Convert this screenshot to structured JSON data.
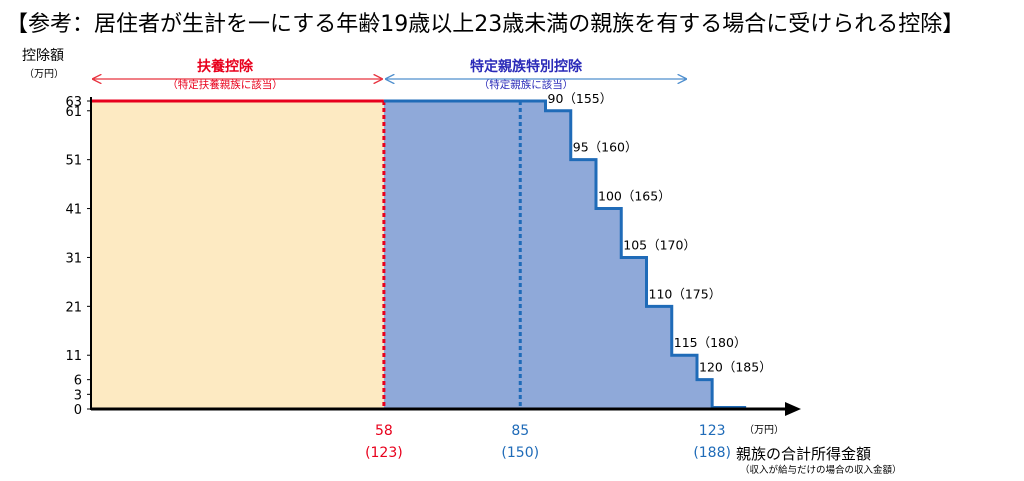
{
  "title": "【参考：居住者が生計を一にする年齢19歳以上23歳未満の親族を有する場合に受けられる控除】",
  "colors": {
    "fuyo_fill": "#fdeac2",
    "tokutei_fill": "#8fa9d9",
    "red": "#e8001c",
    "blue": "#1f6bb8",
    "label_blue": "#2a2ab8",
    "arrow_red": "#e8333f",
    "arrow_blue": "#4f8fce"
  },
  "chart_data": {
    "type": "area",
    "ylabel": "控除額",
    "yunit": "（万円）",
    "xlabel": "親族の合計所得金額",
    "xlabel_note": "（収入が給与だけの場合の収入金額）",
    "xunit": "（万円）",
    "yticks": [
      "0",
      "3",
      "6",
      "11",
      "21",
      "31",
      "41",
      "51",
      "61",
      "63"
    ],
    "xticks": [
      {
        "value": "58",
        "sub": "(123)",
        "color": "red"
      },
      {
        "value": "85",
        "sub": "(150)",
        "color": "blue"
      },
      {
        "value": "123",
        "sub": "(188)",
        "color": "blue"
      }
    ],
    "regions": [
      {
        "name": "扶養控除",
        "note": "（特定扶養親族に該当）",
        "from": 0,
        "to": 58,
        "value": 63
      },
      {
        "name": "特定親族特別控除",
        "note": "（特定親族に該当）",
        "from": 58,
        "to": 123
      }
    ],
    "steps": [
      {
        "x": 58,
        "y": 63
      },
      {
        "x": 85,
        "y": 63
      },
      {
        "x": 90,
        "y": 61
      },
      {
        "x": 95,
        "y": 51
      },
      {
        "x": 100,
        "y": 41
      },
      {
        "x": 105,
        "y": 31
      },
      {
        "x": 110,
        "y": 21
      },
      {
        "x": 115,
        "y": 11
      },
      {
        "x": 120,
        "y": 6
      },
      {
        "x": 123,
        "y": 3
      },
      {
        "x": 123,
        "y": 0
      }
    ],
    "step_labels": [
      "90（155）",
      "95（160）",
      "100（165）",
      "105（170）",
      "110（175）",
      "115（180）",
      "120（185）"
    ]
  }
}
